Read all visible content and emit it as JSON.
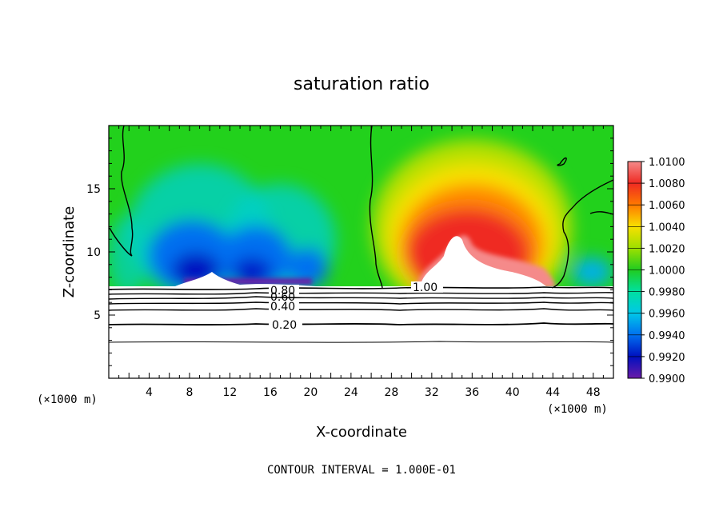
{
  "chart_data": {
    "type": "heatmap",
    "title": "saturation ratio",
    "xlabel": "X-coordinate",
    "ylabel": "Z-coordinate",
    "x_unit_left": "(×1000 m)",
    "x_unit_right": "(×1000 m)",
    "xlim": [
      0,
      50
    ],
    "ylim": [
      0,
      20
    ],
    "x_ticks": [
      4,
      8,
      12,
      16,
      20,
      24,
      28,
      32,
      36,
      40,
      44,
      48
    ],
    "y_ticks": [
      5,
      10,
      15
    ],
    "colorbar": {
      "min": 0.99,
      "max": 1.01,
      "levels": [
        "1.0100",
        "1.0080",
        "1.0060",
        "1.0040",
        "1.0020",
        "1.0000",
        "0.9980",
        "0.9960",
        "0.9940",
        "0.9920",
        "0.9900"
      ]
    },
    "contour_labels": [
      {
        "text": "0.80",
        "x": 17.2,
        "z": 7.0
      },
      {
        "text": "0.60",
        "x": 17.2,
        "z": 6.6
      },
      {
        "text": "0.40",
        "x": 17.2,
        "z": 5.9
      },
      {
        "text": "0.20",
        "x": 17.2,
        "z": 4.2
      },
      {
        "text": "1.00",
        "x": 31.5,
        "z": 7.1
      }
    ],
    "contour_interval_note": "CONTOUR INTERVAL = 1.000E-01",
    "grid": false
  }
}
